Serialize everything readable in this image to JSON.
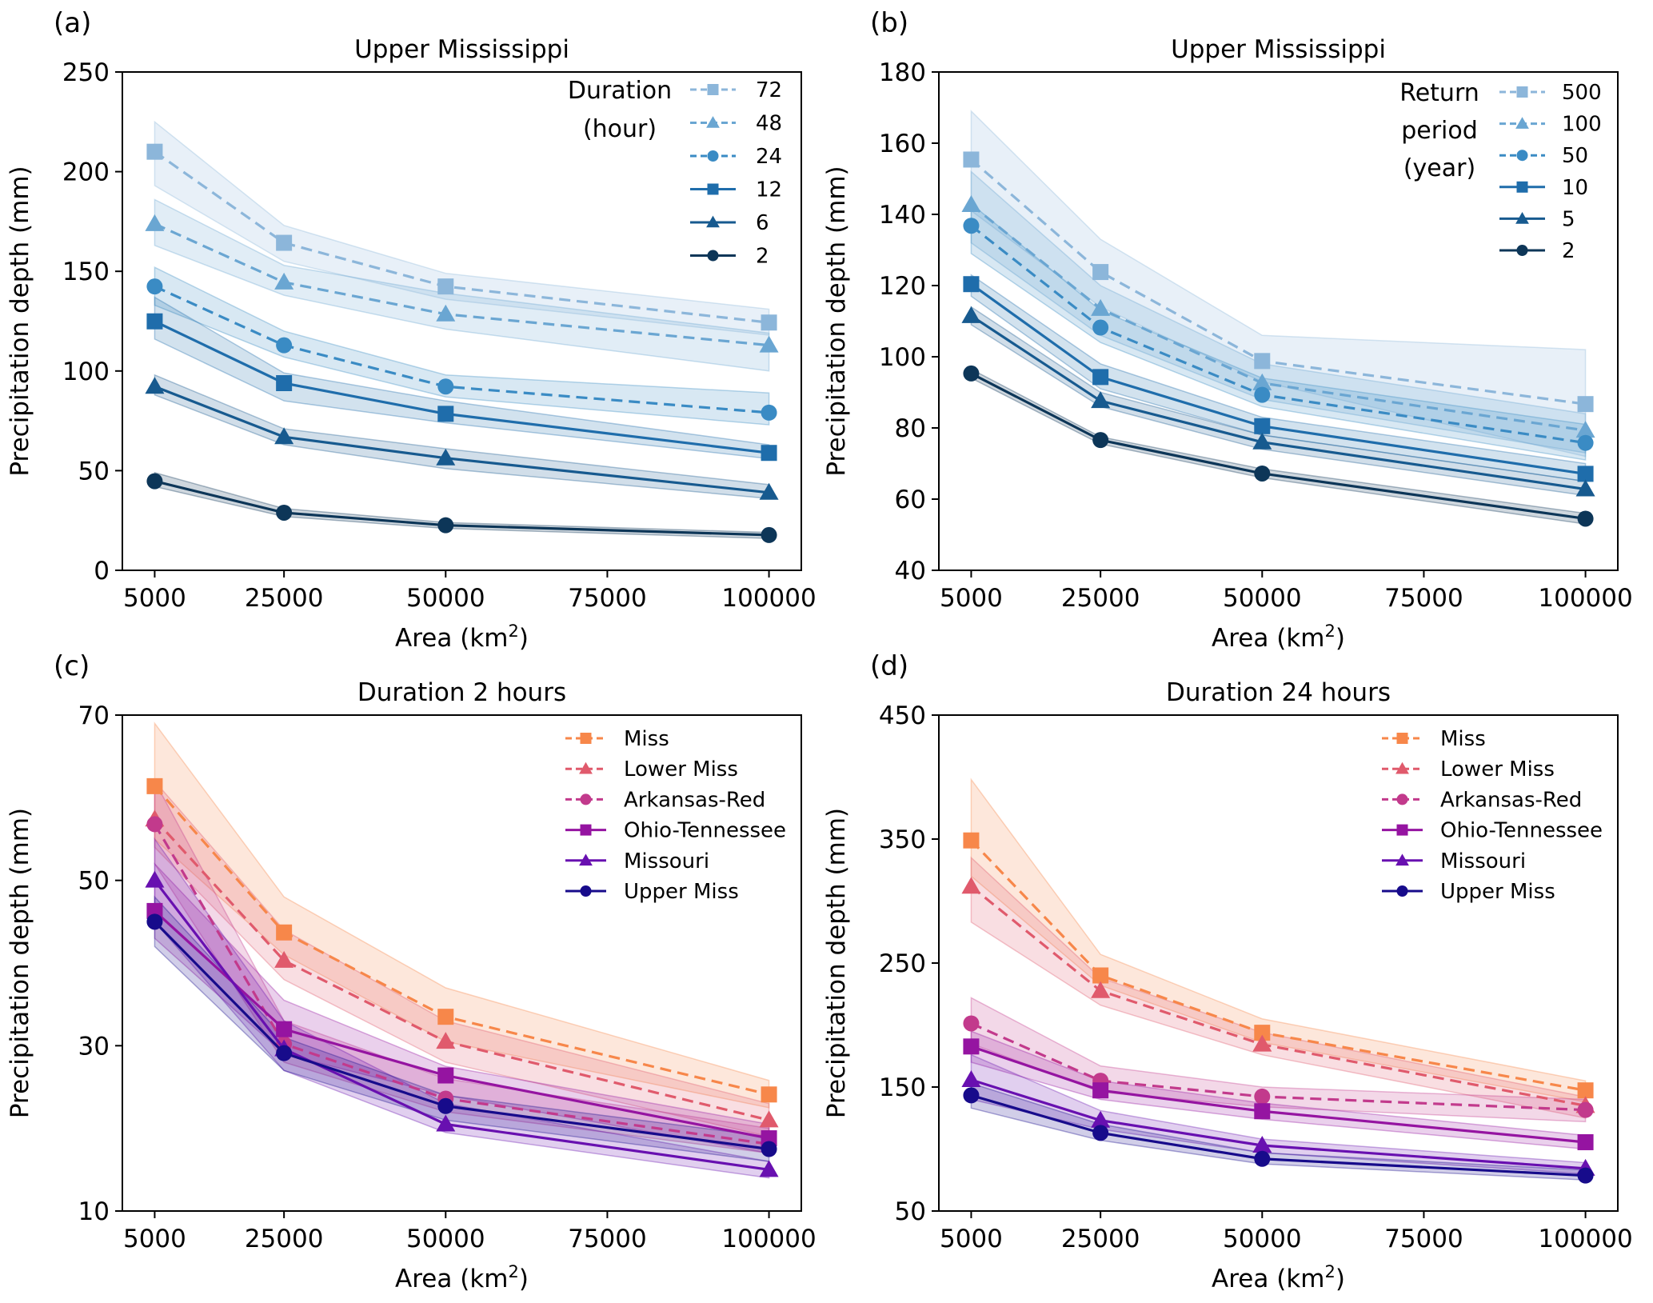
{
  "figure": {
    "panels": [
      "a",
      "b",
      "c",
      "d"
    ]
  },
  "chart_data": [
    {
      "id": "a",
      "type": "line",
      "panel_label": "(a)",
      "title": "Upper Mississippi",
      "xlabel": "Area (km",
      "xlabel_sup": "2",
      "xlabel_end": ")",
      "ylabel": "Precipitation depth (mm)",
      "x": [
        5000,
        25000,
        50000,
        100000
      ],
      "xlim": [
        0,
        105000
      ],
      "xticks": [
        5000,
        25000,
        50000,
        75000,
        100000
      ],
      "xtick_labels": [
        "5000",
        "25000",
        "50000",
        "75000",
        "100000"
      ],
      "ylim": [
        0,
        250
      ],
      "yticks": [
        0,
        50,
        100,
        150,
        200,
        250
      ],
      "ytick_labels": [
        "0",
        "50",
        "100",
        "150",
        "200",
        "250"
      ],
      "grid": false,
      "legend": {
        "position": "top-right",
        "title_lines": [
          "Duration",
          "(hour)"
        ]
      },
      "series": [
        {
          "name": "72",
          "color": "#8cb6da",
          "dashed": true,
          "marker": "square",
          "values": [
            210,
            164.3,
            142.4,
            124.3
          ],
          "lower": [
            193,
            155,
            136,
            118
          ],
          "upper": [
            225,
            173,
            149,
            131
          ]
        },
        {
          "name": "48",
          "color": "#6aa6d2",
          "dashed": true,
          "marker": "triangle",
          "values": [
            173.8,
            144.5,
            128.5,
            112.9
          ],
          "lower": [
            163,
            138,
            121,
            100
          ],
          "upper": [
            186,
            153,
            139,
            119
          ]
        },
        {
          "name": "24",
          "color": "#3a8bc4",
          "dashed": true,
          "marker": "circle",
          "values": [
            142.4,
            112.9,
            92.2,
            79.1
          ],
          "lower": [
            133,
            107,
            87,
            73
          ],
          "upper": [
            152,
            120,
            98,
            89
          ]
        },
        {
          "name": "12",
          "color": "#1f6dab",
          "dashed": false,
          "marker": "square",
          "values": [
            124.9,
            93.9,
            78.5,
            58.9
          ],
          "lower": [
            116,
            85,
            74,
            56
          ],
          "upper": [
            137,
            99,
            85,
            63
          ]
        },
        {
          "name": "6",
          "color": "#175a8f",
          "dashed": false,
          "marker": "triangle",
          "values": [
            92.2,
            66.9,
            56.3,
            39.0
          ],
          "lower": [
            88,
            63,
            51,
            36
          ],
          "upper": [
            98,
            71,
            61,
            43
          ]
        },
        {
          "name": "2",
          "color": "#0d3658",
          "dashed": false,
          "marker": "circle",
          "values": [
            44.7,
            28.9,
            22.6,
            17.7
          ],
          "lower": [
            42,
            27,
            21,
            16
          ],
          "upper": [
            49,
            31,
            24,
            19
          ]
        }
      ]
    },
    {
      "id": "b",
      "type": "line",
      "panel_label": "(b)",
      "title": "Upper Mississippi",
      "xlabel": "Area (km",
      "xlabel_sup": "2",
      "xlabel_end": ")",
      "ylabel": "Precipitation depth (mm)",
      "x": [
        5000,
        25000,
        50000,
        100000
      ],
      "xlim": [
        0,
        105000
      ],
      "xticks": [
        5000,
        25000,
        50000,
        75000,
        100000
      ],
      "xtick_labels": [
        "5000",
        "25000",
        "50000",
        "75000",
        "100000"
      ],
      "ylim": [
        40,
        180
      ],
      "yticks": [
        40,
        60,
        80,
        100,
        120,
        140,
        160,
        180
      ],
      "ytick_labels": [
        "40",
        "60",
        "80",
        "100",
        "120",
        "140",
        "160",
        "180"
      ],
      "grid": false,
      "legend": {
        "position": "top-right",
        "title_lines": [
          "Return",
          "period",
          "(year)"
        ]
      },
      "series": [
        {
          "name": "500",
          "color": "#8cb6da",
          "dashed": true,
          "marker": "square",
          "values": [
            155.4,
            123.8,
            98.8,
            86.7
          ],
          "lower": [
            141,
            114,
            93,
            72
          ],
          "upper": [
            169,
            133,
            106,
            102
          ]
        },
        {
          "name": "100",
          "color": "#6aa6d2",
          "dashed": true,
          "marker": "triangle",
          "values": [
            142.7,
            113.5,
            92.6,
            79.3
          ],
          "lower": [
            132,
            106,
            88,
            73
          ],
          "upper": [
            152,
            120,
            98,
            84
          ]
        },
        {
          "name": "50",
          "color": "#3a8bc4",
          "dashed": true,
          "marker": "circle",
          "values": [
            136.8,
            108.2,
            89.3,
            75.8
          ],
          "lower": [
            129,
            104,
            86,
            71
          ],
          "upper": [
            143,
            113,
            94,
            81
          ]
        },
        {
          "name": "10",
          "color": "#1f6dab",
          "dashed": false,
          "marker": "square",
          "values": [
            120.4,
            94.3,
            80.5,
            67.1
          ],
          "lower": [
            117,
            91,
            78,
            65
          ],
          "upper": [
            123,
            98,
            83,
            70
          ]
        },
        {
          "name": "5",
          "color": "#175a8f",
          "dashed": false,
          "marker": "triangle",
          "values": [
            111.5,
            87.6,
            76.0,
            62.8
          ],
          "lower": [
            109,
            86,
            74,
            61
          ],
          "upper": [
            114,
            90,
            78,
            65
          ]
        },
        {
          "name": "2",
          "color": "#0d3658",
          "dashed": false,
          "marker": "circle",
          "values": [
            95.3,
            76.6,
            67.2,
            54.5
          ],
          "lower": [
            94,
            75.5,
            66,
            53
          ],
          "upper": [
            96.5,
            77.5,
            68.5,
            56
          ]
        }
      ]
    },
    {
      "id": "c",
      "type": "line",
      "panel_label": "(c)",
      "title": "Duration 2 hours",
      "xlabel": "Area (km",
      "xlabel_sup": "2",
      "xlabel_end": ")",
      "ylabel": "Precipitation depth (mm)",
      "x": [
        5000,
        25000,
        50000,
        100000
      ],
      "xlim": [
        0,
        105000
      ],
      "xticks": [
        5000,
        25000,
        50000,
        75000,
        100000
      ],
      "xtick_labels": [
        "5000",
        "25000",
        "50000",
        "75000",
        "100000"
      ],
      "ylim": [
        10,
        70
      ],
      "yticks": [
        10,
        30,
        50,
        70
      ],
      "ytick_labels": [
        "10",
        "30",
        "50",
        "70"
      ],
      "grid": false,
      "legend": {
        "position": "top-right",
        "title_lines": []
      },
      "series": [
        {
          "name": "Miss",
          "color": "#f7874a",
          "dashed": true,
          "marker": "square",
          "values": [
            61.4,
            43.7,
            33.5,
            24.1
          ],
          "lower": [
            55,
            41,
            30.5,
            22.5
          ],
          "upper": [
            69,
            48,
            37,
            25.8
          ]
        },
        {
          "name": "Lower Miss",
          "color": "#e05a6c",
          "dashed": true,
          "marker": "triangle",
          "values": [
            57.4,
            40.3,
            30.5,
            21.0
          ],
          "lower": [
            54,
            38,
            28,
            19
          ],
          "upper": [
            62,
            44,
            33,
            23
          ]
        },
        {
          "name": "Arkansas-Red",
          "color": "#c23a8c",
          "dashed": true,
          "marker": "circle",
          "values": [
            56.8,
            30.2,
            23.6,
            18.1
          ],
          "lower": [
            52,
            28,
            22,
            17
          ],
          "upper": [
            62,
            33,
            26,
            20
          ]
        },
        {
          "name": "Ohio-Tennessee",
          "color": "#9514a1",
          "dashed": false,
          "marker": "square",
          "values": [
            46.3,
            32.0,
            26.4,
            18.8
          ],
          "lower": [
            43,
            29,
            24,
            17
          ],
          "upper": [
            52,
            35.5,
            27.5,
            20.5
          ]
        },
        {
          "name": "Missouri",
          "color": "#6810b0",
          "dashed": false,
          "marker": "triangle",
          "values": [
            50.0,
            29.6,
            20.5,
            15.0
          ],
          "lower": [
            45,
            27,
            19.5,
            14
          ],
          "upper": [
            55,
            33,
            23,
            16
          ]
        },
        {
          "name": "Upper Miss",
          "color": "#170b8b",
          "dashed": false,
          "marker": "circle",
          "values": [
            45.0,
            29.1,
            22.7,
            17.5
          ],
          "lower": [
            42,
            27,
            21,
            16
          ],
          "upper": [
            48,
            31,
            24,
            19
          ]
        }
      ]
    },
    {
      "id": "d",
      "type": "line",
      "panel_label": "(d)",
      "title": "Duration 24 hours",
      "xlabel": "Area (km",
      "xlabel_sup": "2",
      "xlabel_end": ")",
      "ylabel": "Precipitation depth (mm)",
      "x": [
        5000,
        25000,
        50000,
        100000
      ],
      "xlim": [
        0,
        105000
      ],
      "xticks": [
        5000,
        25000,
        50000,
        75000,
        100000
      ],
      "xtick_labels": [
        "5000",
        "25000",
        "50000",
        "75000",
        "100000"
      ],
      "ylim": [
        50,
        450
      ],
      "yticks": [
        50,
        150,
        250,
        350,
        450
      ],
      "ytick_labels": [
        "50",
        "150",
        "250",
        "350",
        "450"
      ],
      "grid": false,
      "legend": {
        "position": "top-right",
        "title_lines": []
      },
      "series": [
        {
          "name": "Miss",
          "color": "#f7874a",
          "dashed": true,
          "marker": "square",
          "values": [
            348.9,
            240.0,
            193.8,
            147.3
          ],
          "lower": [
            320,
            232,
            186,
            138
          ],
          "upper": [
            398,
            257,
            205,
            155
          ]
        },
        {
          "name": "Lower Miss",
          "color": "#e05a6c",
          "dashed": true,
          "marker": "triangle",
          "values": [
            311.8,
            227.6,
            184.4,
            134.9
          ],
          "lower": [
            283,
            216,
            176,
            125
          ],
          "upper": [
            335,
            238,
            194,
            142
          ]
        },
        {
          "name": "Arkansas-Red",
          "color": "#c23a8c",
          "dashed": true,
          "marker": "circle",
          "values": [
            201.3,
            155.1,
            142.3,
            131.5
          ],
          "lower": [
            185,
            146,
            134,
            122
          ],
          "upper": [
            222,
            167,
            150,
            140
          ]
        },
        {
          "name": "Ohio-Tennessee",
          "color": "#9514a1",
          "dashed": false,
          "marker": "square",
          "values": [
            182.7,
            147.3,
            130.5,
            105.5
          ],
          "lower": [
            170,
            140,
            124,
            100
          ],
          "upper": [
            195,
            155,
            137,
            111
          ]
        },
        {
          "name": "Missouri",
          "color": "#6810b0",
          "dashed": false,
          "marker": "triangle",
          "values": [
            155.8,
            123.1,
            102.9,
            84.3
          ],
          "lower": [
            140,
            116,
            97,
            80
          ],
          "upper": [
            176,
            131,
            108,
            89
          ]
        },
        {
          "name": "Upper Miss",
          "color": "#170b8b",
          "dashed": false,
          "marker": "circle",
          "values": [
            143.3,
            113.0,
            92.1,
            78.6
          ],
          "lower": [
            133,
            107,
            88,
            75
          ],
          "upper": [
            153,
            120,
            97,
            83
          ]
        }
      ]
    }
  ]
}
